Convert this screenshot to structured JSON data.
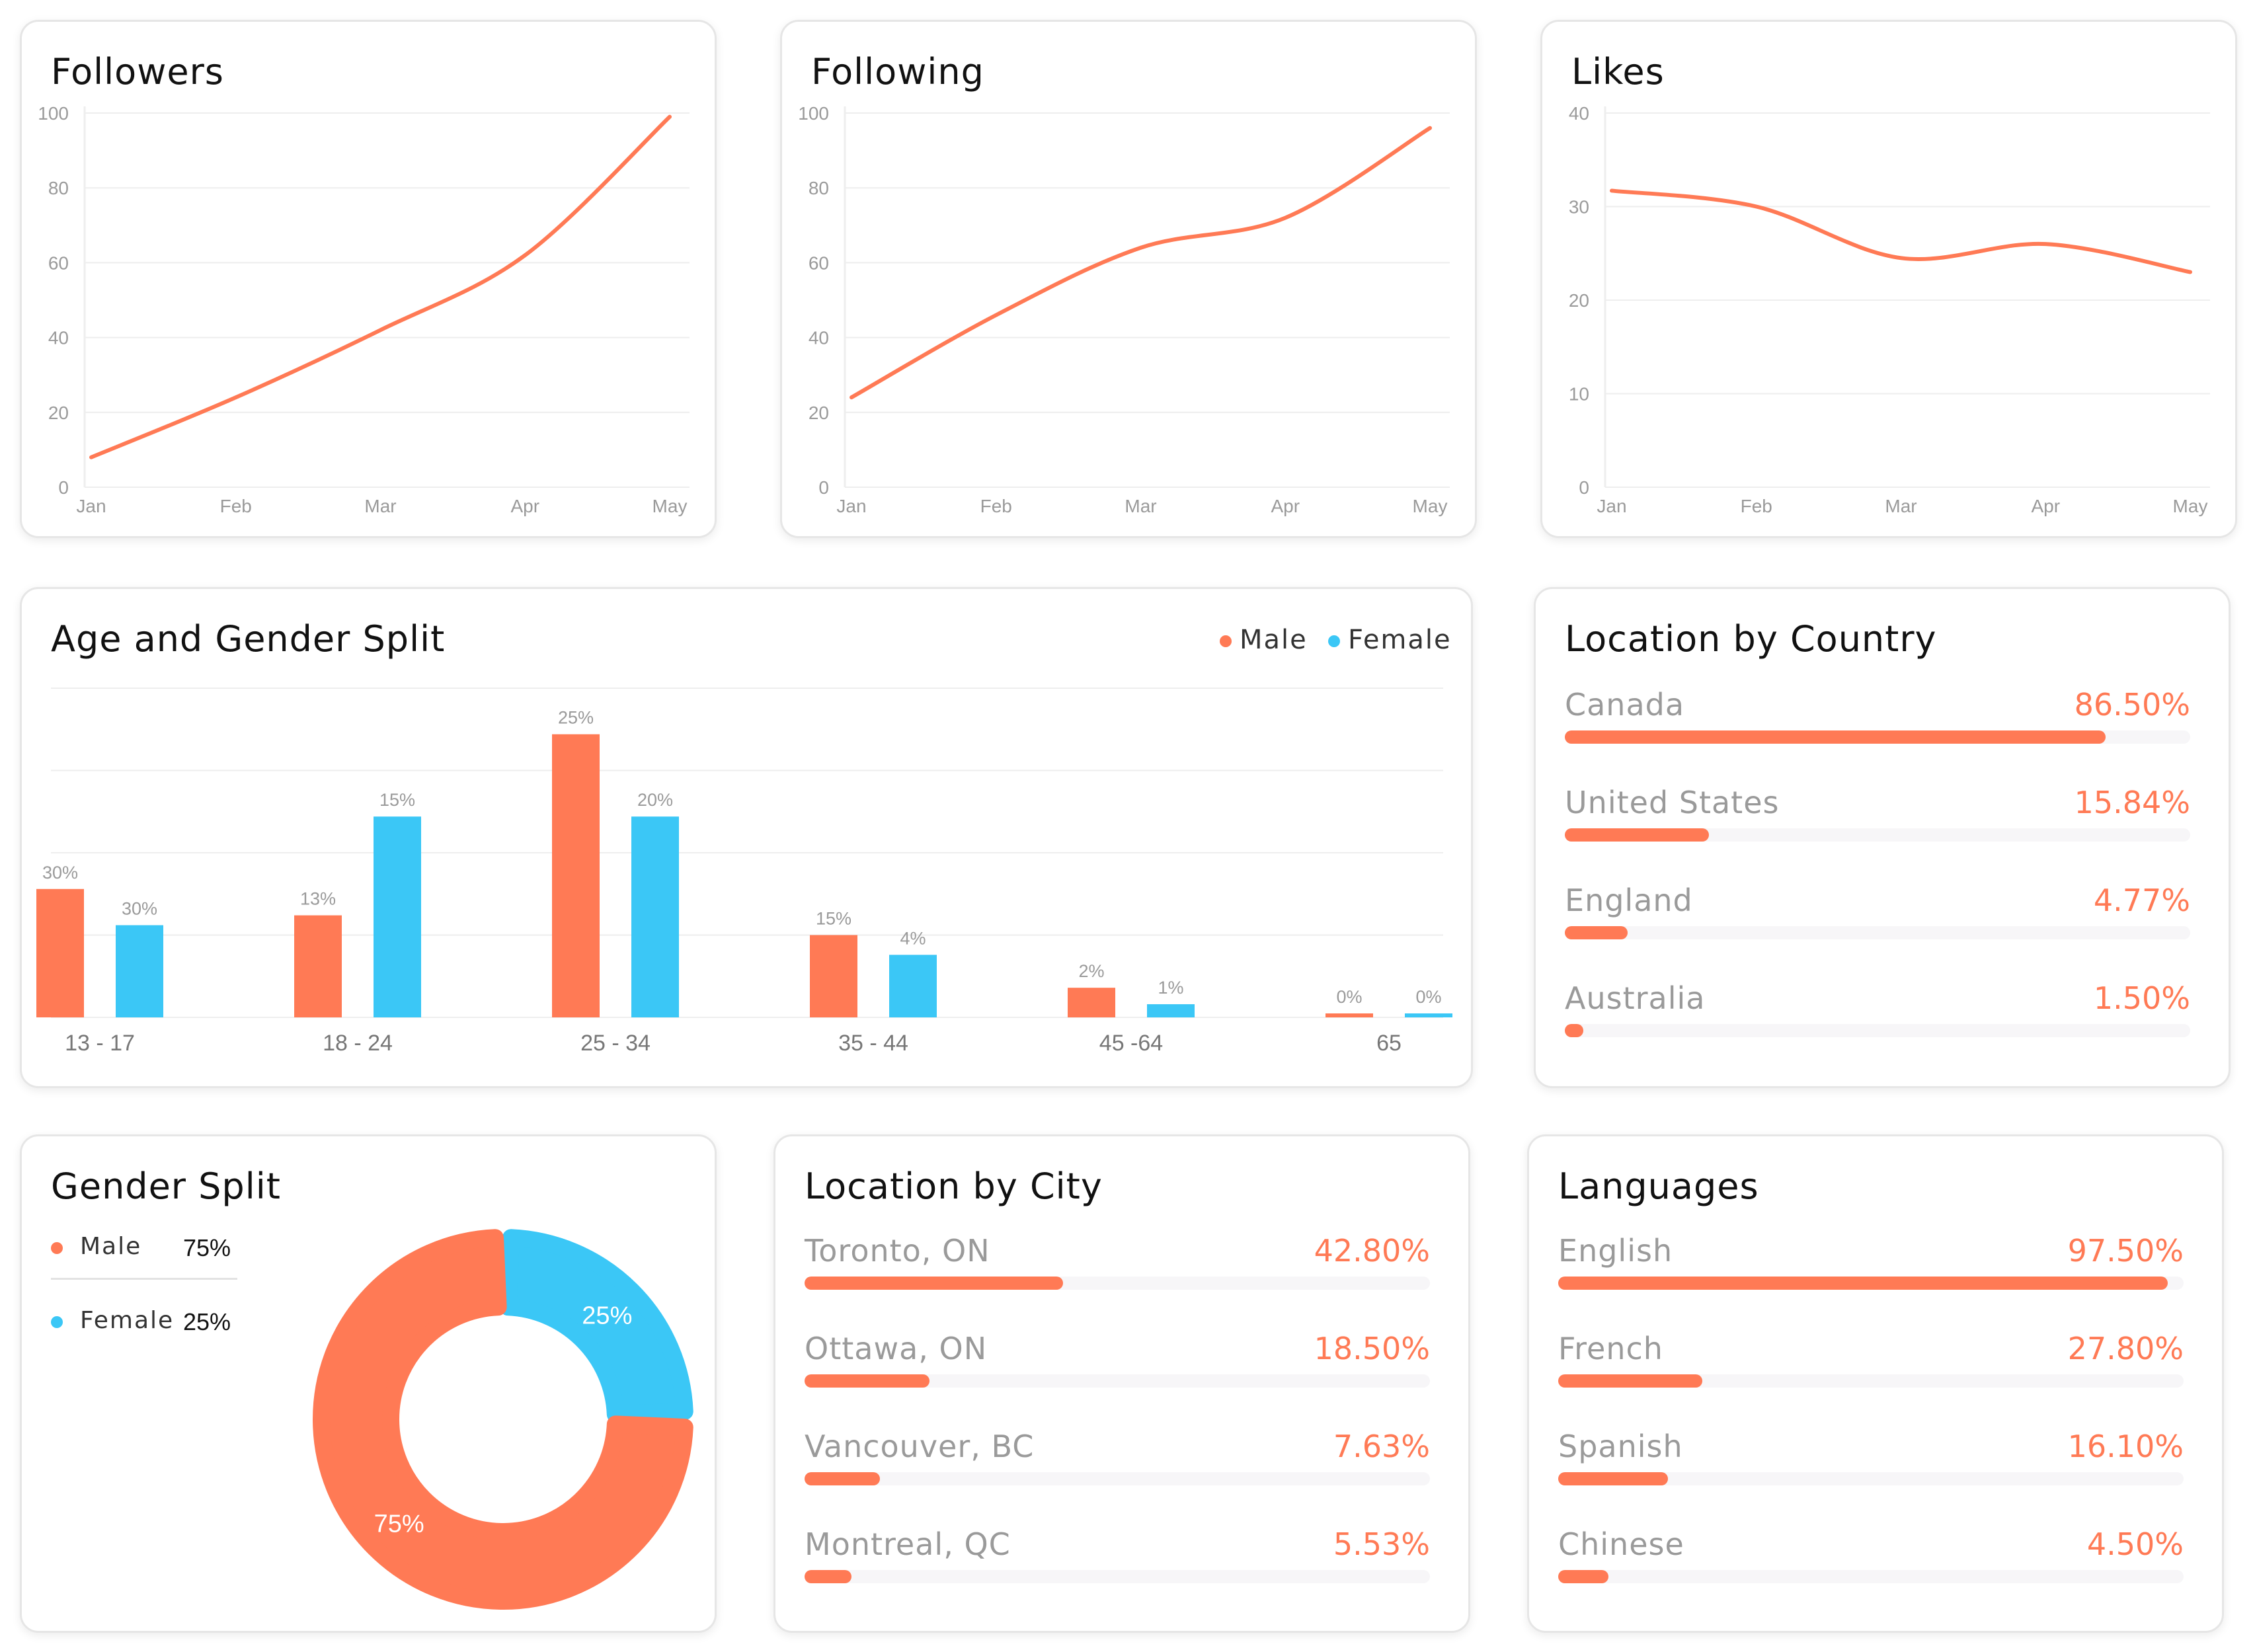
{
  "colors": {
    "male": "#ff7a55",
    "female": "#3bc7f6",
    "accent": "#ff7a55",
    "grid": "#eeeeee",
    "axis_text": "#9a9a9a"
  },
  "followers": {
    "title": "Followers",
    "chart_data": {
      "type": "line",
      "x": [
        "Jan",
        "Feb",
        "Mar",
        "Apr",
        "May"
      ],
      "y": [
        8,
        24,
        42,
        62,
        99
      ],
      "ylim": [
        0,
        100
      ],
      "yticks": [
        "0",
        "20",
        "40",
        "60",
        "80",
        "100"
      ],
      "grid": true
    }
  },
  "following": {
    "title": "Following",
    "chart_data": {
      "type": "line",
      "x": [
        "Jan",
        "Feb",
        "Mar",
        "Apr",
        "May"
      ],
      "y": [
        24,
        46,
        64,
        72,
        96
      ],
      "ylim": [
        0,
        100
      ],
      "yticks": [
        "0",
        "20",
        "40",
        "60",
        "80",
        "100"
      ],
      "grid": true
    }
  },
  "likes": {
    "title": "Likes",
    "chart_data": {
      "type": "line",
      "x": [
        "Jan",
        "Feb",
        "Mar",
        "Apr",
        "May"
      ],
      "y": [
        31.7,
        30,
        24.5,
        26,
        23
      ],
      "ylim": [
        0,
        40
      ],
      "yticks": [
        "0",
        "10",
        "20",
        "30",
        "40"
      ],
      "grid": true
    }
  },
  "age_gender": {
    "title": "Age and Gender Split",
    "legend": {
      "male": "Male",
      "female": "Female"
    },
    "chart_data": {
      "type": "bar",
      "categories": [
        "13 - 17",
        "18 - 24",
        "25 - 34",
        "35 - 44",
        "45 -64",
        "65"
      ],
      "series": [
        {
          "name": "Male",
          "values": [
            30,
            13,
            25,
            15,
            2,
            0
          ],
          "labels": [
            "30%",
            "13%",
            "25%",
            "15%",
            "2%",
            "0%"
          ]
        },
        {
          "name": "Female",
          "values": [
            30,
            15,
            20,
            4,
            1,
            0
          ],
          "labels": [
            "30%",
            "15%",
            "20%",
            "4%",
            "1%",
            "0%"
          ]
        }
      ],
      "bar_levels": {
        "Male": [
          0.39,
          0.31,
          0.86,
          0.25,
          0.09,
          0.01
        ],
        "Female": [
          0.28,
          0.61,
          0.61,
          0.19,
          0.04,
          0.01
        ]
      },
      "grid": true,
      "legend_position": "top-right"
    }
  },
  "country": {
    "title": "Location by Country",
    "items": [
      {
        "label": "Canada",
        "value": "86.50%",
        "fill": 0.865
      },
      {
        "label": "United States",
        "value": "15.84%",
        "fill": 0.23
      },
      {
        "label": "England",
        "value": "4.77%",
        "fill": 0.1
      },
      {
        "label": "Australia",
        "value": "1.50%",
        "fill": 0.03
      }
    ]
  },
  "gender_split": {
    "title": "Gender Split",
    "items": [
      {
        "label": "Male",
        "value": "75%"
      },
      {
        "label": "Female",
        "value": "25%"
      }
    ],
    "chart_data": {
      "type": "pie",
      "categories": [
        "Male",
        "Female"
      ],
      "values": [
        75,
        25
      ],
      "labels": [
        "75%",
        "25%"
      ]
    }
  },
  "city": {
    "title": "Location by City",
    "items": [
      {
        "label": "Toronto, ON",
        "value": "42.80%",
        "fill": 0.413
      },
      {
        "label": "Ottawa, ON",
        "value": "18.50%",
        "fill": 0.2
      },
      {
        "label": "Vancouver, BC",
        "value": "7.63%",
        "fill": 0.12
      },
      {
        "label": "Montreal, QC",
        "value": "5.53%",
        "fill": 0.075
      }
    ]
  },
  "languages": {
    "title": "Languages",
    "items": [
      {
        "label": "English",
        "value": "97.50%",
        "fill": 0.975
      },
      {
        "label": "French",
        "value": "27.80%",
        "fill": 0.23
      },
      {
        "label": "Spanish",
        "value": "16.10%",
        "fill": 0.175
      },
      {
        "label": "Chinese",
        "value": "4.50%",
        "fill": 0.08
      }
    ]
  }
}
